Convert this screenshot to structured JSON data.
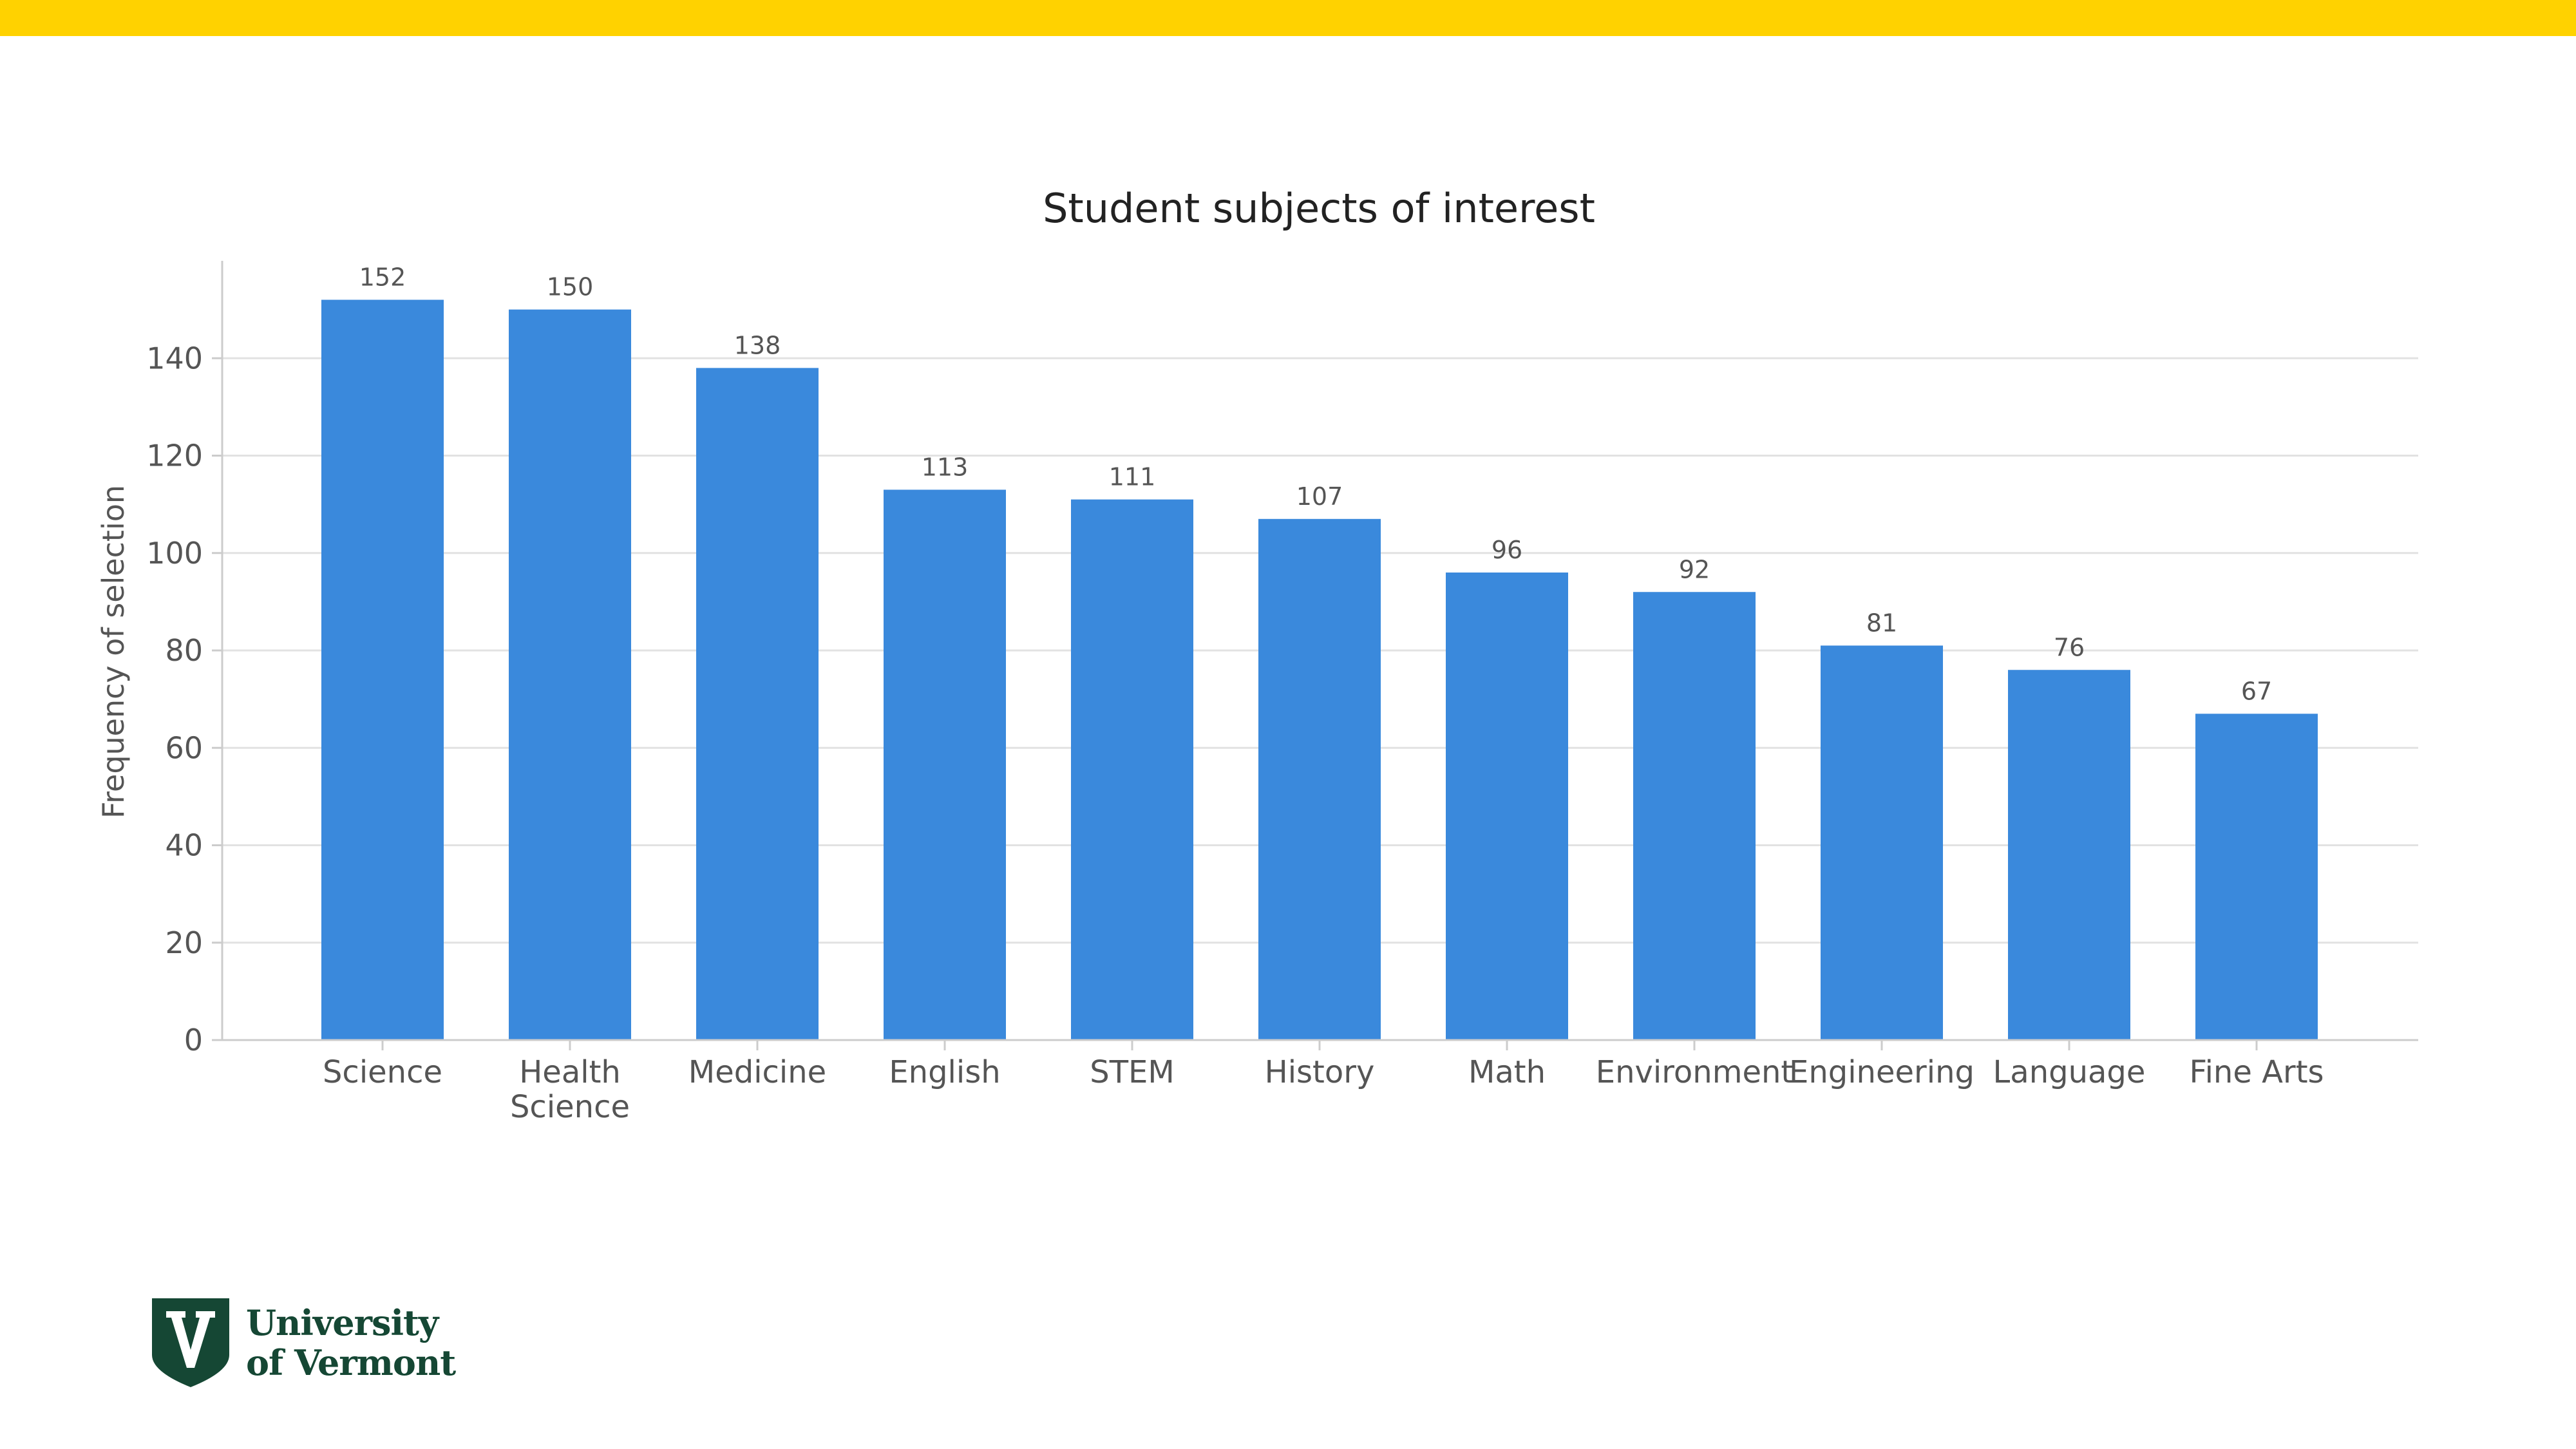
{
  "colors": {
    "accent_bar": "#ffd200",
    "bar_fill": "#3a89dc",
    "logo_green": "#154734"
  },
  "logo": {
    "icon": "uvm-shield-icon",
    "line1": "University",
    "line2": "of Vermont"
  },
  "chart_data": {
    "type": "bar",
    "title": "Student subjects of interest",
    "xlabel": "",
    "ylabel": "Frequency of selection",
    "categories": [
      "Science",
      "Health\nScience",
      "Medicine",
      "English",
      "STEM",
      "History",
      "Math",
      "Environment",
      "Engineering",
      "Language",
      "Fine Arts"
    ],
    "values": [
      152,
      150,
      138,
      113,
      111,
      107,
      96,
      92,
      81,
      76,
      67
    ],
    "data_labels": [
      "152",
      "150",
      "138",
      "113",
      "111",
      "107",
      "96",
      "92",
      "81",
      "76",
      "67"
    ],
    "yticks": [
      0,
      20,
      40,
      60,
      80,
      100,
      120,
      140
    ],
    "ylim": [
      0,
      160
    ],
    "grid": "horizontal",
    "legend": "none"
  }
}
